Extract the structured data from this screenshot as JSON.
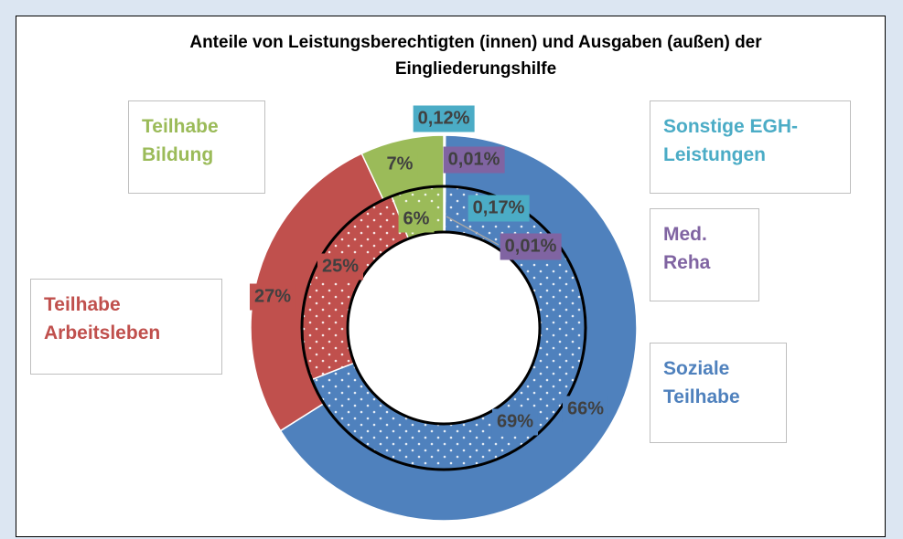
{
  "chart_data": {
    "type": "donut",
    "title": "Anteile von Leistungsberechtigten (innen) und Ausgaben (außen) der Eingliederungshilfe",
    "categories": [
      "Sonstige EGH-Leistungen",
      "Med. Reha",
      "Soziale Teilhabe",
      "Teilhabe Arbeitsleben",
      "Teilhabe Bildung"
    ],
    "colors": [
      "#4bacc6",
      "#8064a2",
      "#4f81bd",
      "#c0504d",
      "#9bbb59"
    ],
    "series": [
      {
        "values": [
          0.17,
          0.01,
          69,
          25,
          6
        ],
        "value_labels": [
          "0,17%",
          "0,01%",
          "69%",
          "25%",
          "6%"
        ]
      },
      {
        "values": [
          0.12,
          0.01,
          66,
          27,
          7
        ],
        "value_labels": [
          "0,12%",
          "0,01%",
          "66%",
          "27%",
          "7%"
        ]
      }
    ]
  }
}
